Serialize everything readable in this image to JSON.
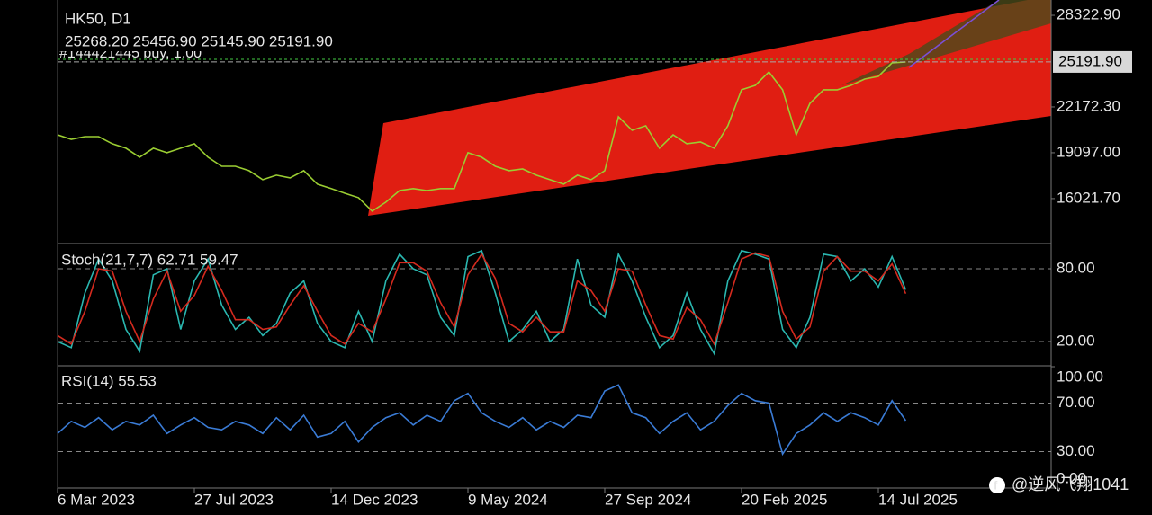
{
  "chart_data": [
    {
      "type": "line",
      "title": "HK50, D1",
      "subtitle": "25268.20 25456.90 25145.90 25191.90",
      "annotation": "#144421445 buy, 1.00",
      "categories": [
        "6 Mar 2023",
        null,
        null,
        null,
        null,
        null,
        null,
        null,
        null,
        null,
        "27 Jul 2023",
        null,
        null,
        null,
        null,
        null,
        null,
        null,
        null,
        null,
        "14 Dec 2023",
        null,
        null,
        null,
        null,
        null,
        null,
        null,
        null,
        null,
        "9 May 2024",
        null,
        null,
        null,
        null,
        null,
        null,
        null,
        null,
        null,
        "27 Sep 2024",
        null,
        null,
        null,
        null,
        null,
        null,
        null,
        null,
        null,
        "20 Feb 2025",
        null,
        null,
        null,
        null,
        null,
        null,
        null,
        null,
        null,
        "14 Jul 2025",
        null,
        null
      ],
      "values": [
        20300,
        20000,
        20180,
        20180,
        19700,
        19400,
        18800,
        19400,
        19100,
        19400,
        19700,
        18800,
        18190,
        18190,
        17890,
        17290,
        17590,
        17410,
        17890,
        16990,
        16690,
        16380,
        16080,
        15180,
        15780,
        16560,
        16690,
        16560,
        16690,
        16690,
        19100,
        18800,
        18190,
        17890,
        18010,
        17590,
        17290,
        16990,
        17590,
        17290,
        17890,
        21510,
        20600,
        20910,
        19400,
        20300,
        19700,
        19820,
        19400,
        20910,
        23320,
        23620,
        24520,
        23320,
        20300,
        22410,
        23320,
        23320,
        23620,
        24040,
        24220,
        25130,
        25190
      ],
      "color": "#9acd32",
      "ylim": [
        13000,
        29350
      ],
      "yticks": [
        {
          "value": 16021.7,
          "label": "16021.70"
        },
        {
          "value": 19097,
          "label": "19097.00"
        },
        {
          "value": 22172.3,
          "label": "22172.30"
        },
        {
          "value": 28322.9,
          "label": "28322.90"
        }
      ],
      "last_price": {
        "value": 25191.9,
        "label": "25191.90"
      }
    },
    {
      "type": "line",
      "title": "Stoch(21,7,7) 62.71 59.47",
      "series": [
        {
          "color": "#2ab7b0",
          "values": [
            20,
            15,
            60,
            88,
            70,
            30,
            12,
            75,
            80,
            30,
            70,
            88,
            50,
            30,
            40,
            25,
            35,
            60,
            70,
            35,
            20,
            15,
            45,
            20,
            70,
            92,
            80,
            75,
            40,
            25,
            90,
            95,
            60,
            20,
            30,
            45,
            20,
            30,
            88,
            50,
            40,
            92,
            70,
            40,
            15,
            25,
            60,
            30,
            10,
            70,
            95,
            92,
            88,
            30,
            15,
            40,
            92,
            90,
            70,
            80,
            65,
            90,
            62.71
          ]
        },
        {
          "color": "#d42a1e",
          "values": [
            25,
            18,
            45,
            80,
            78,
            45,
            20,
            55,
            78,
            45,
            58,
            82,
            62,
            38,
            38,
            30,
            32,
            50,
            66,
            45,
            25,
            18,
            35,
            28,
            55,
            85,
            85,
            78,
            52,
            32,
            75,
            92,
            72,
            35,
            28,
            40,
            28,
            28,
            70,
            62,
            45,
            80,
            78,
            50,
            25,
            22,
            48,
            38,
            18,
            52,
            88,
            93,
            90,
            45,
            22,
            32,
            78,
            90,
            78,
            78,
            70,
            84,
            59.47
          ]
        }
      ],
      "ylim": [
        0,
        100
      ],
      "yticks": [
        {
          "value": 20,
          "label": "20.00"
        },
        {
          "value": 80,
          "label": "80.00"
        }
      ]
    },
    {
      "type": "line",
      "title": "RSI(14) 55.53",
      "values": [
        45,
        55,
        50,
        58,
        48,
        55,
        52,
        60,
        45,
        52,
        58,
        50,
        48,
        55,
        52,
        45,
        58,
        48,
        60,
        42,
        45,
        55,
        38,
        50,
        58,
        62,
        52,
        60,
        55,
        72,
        78,
        62,
        55,
        50,
        58,
        48,
        55,
        50,
        60,
        58,
        80,
        85,
        62,
        58,
        45,
        55,
        62,
        48,
        55,
        68,
        78,
        72,
        70,
        28,
        45,
        52,
        62,
        55,
        62,
        58,
        52,
        72,
        55.53
      ],
      "color": "#3a7bd5",
      "ylim": [
        0,
        100
      ],
      "yticks": [
        {
          "value": 0,
          "label": "0.00"
        },
        {
          "value": 30,
          "label": "30.00"
        },
        {
          "value": 70,
          "label": "70.00"
        },
        {
          "value": 100,
          "label": "100.00"
        }
      ]
    }
  ],
  "watermark": "@逆风飞翔1041"
}
